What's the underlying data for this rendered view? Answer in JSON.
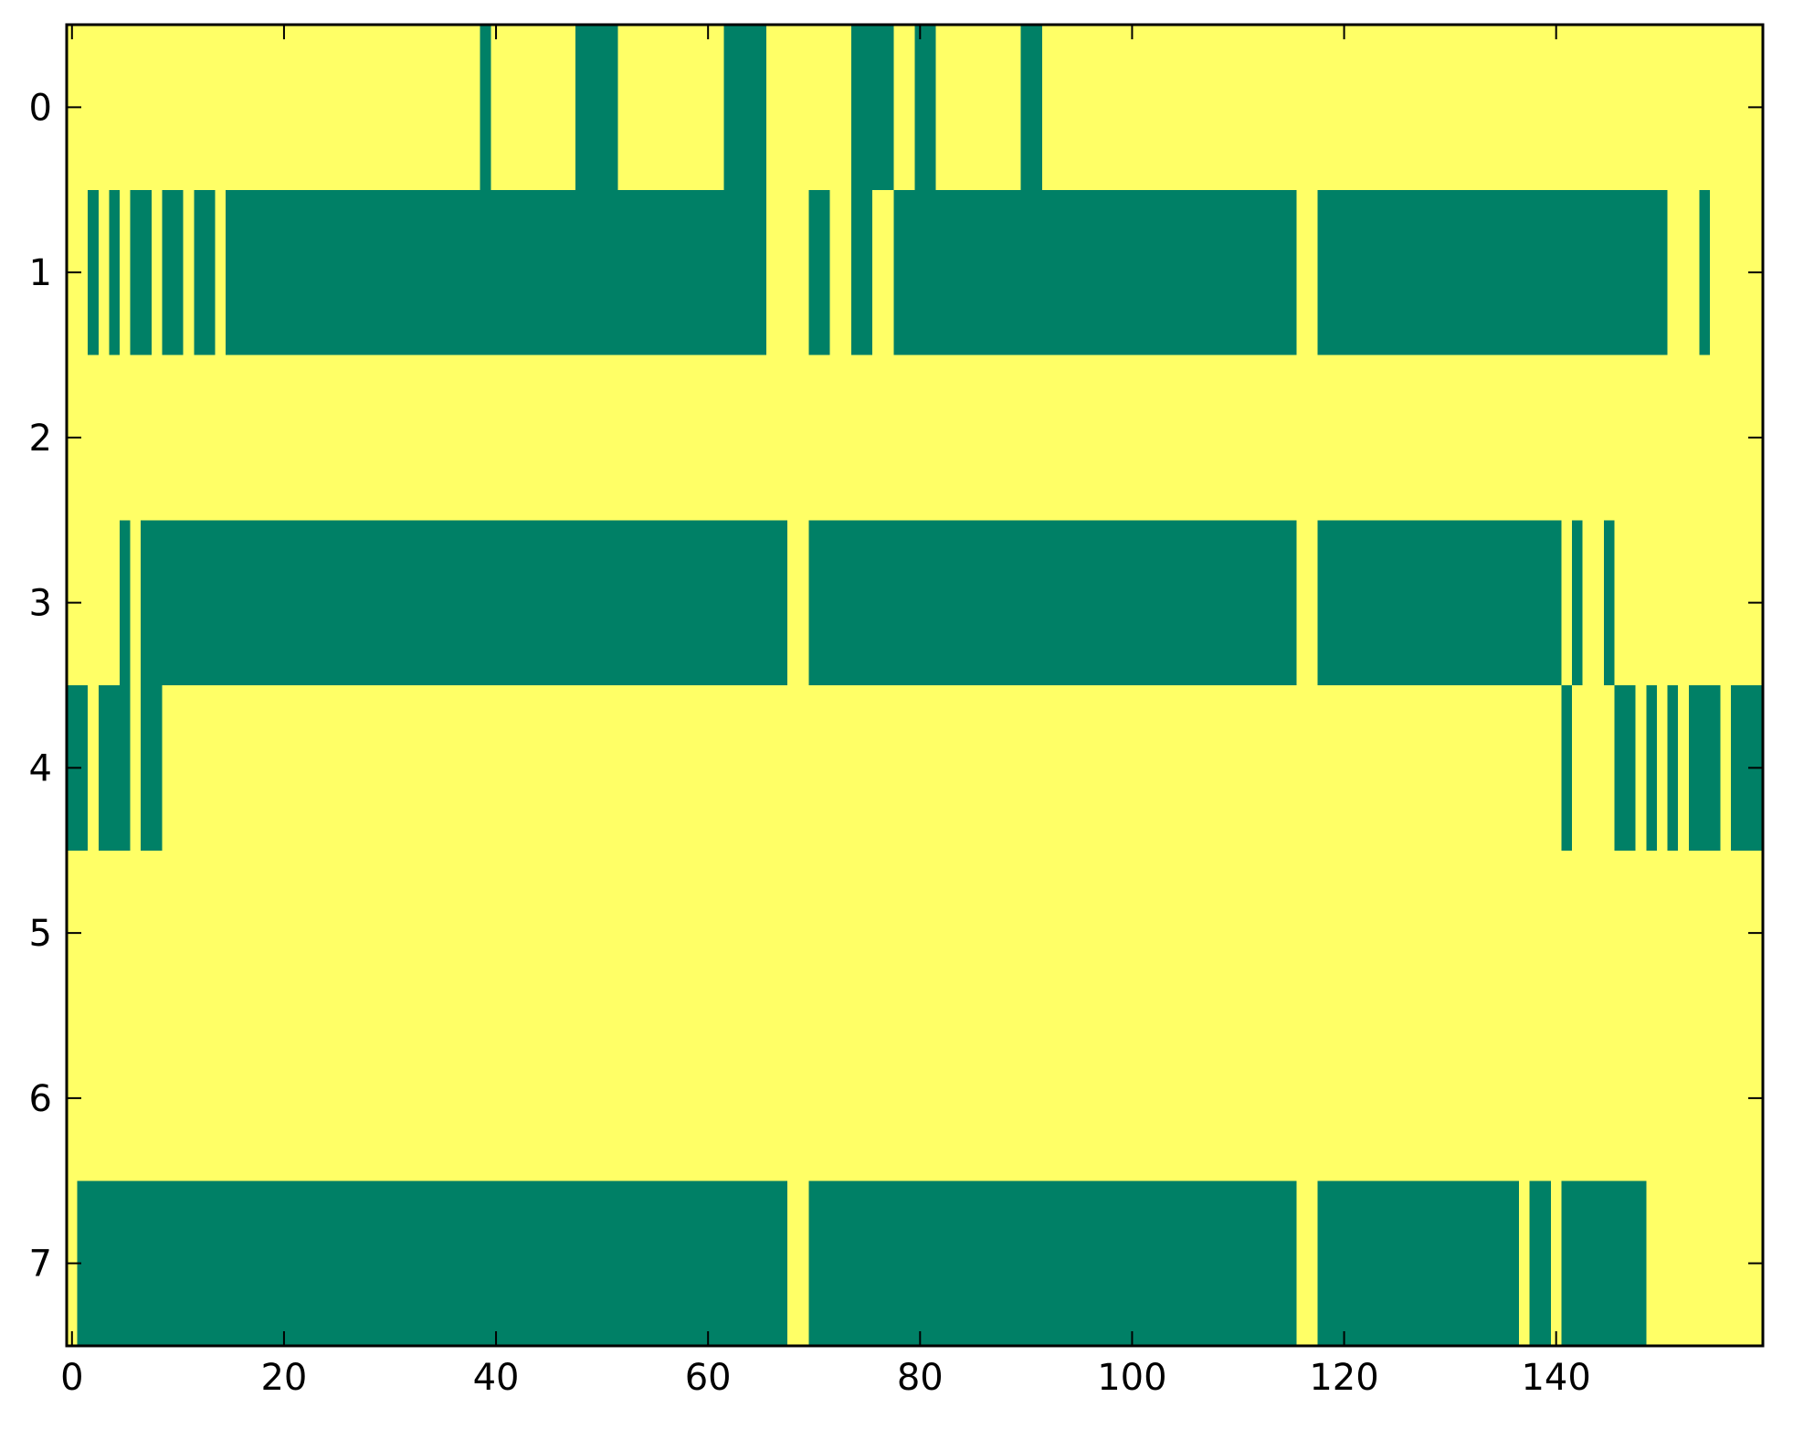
{
  "chart_data": {
    "type": "heatmap",
    "title": "",
    "xlabel": "",
    "ylabel": "",
    "xlim": [
      -0.5,
      159.5
    ],
    "ylim": [
      7.5,
      -0.5
    ],
    "n_columns": 160,
    "n_rows": 8,
    "x_ticks": [
      0,
      20,
      40,
      60,
      80,
      100,
      120,
      140
    ],
    "x_tick_labels": [
      "0",
      "20",
      "40",
      "60",
      "80",
      "100",
      "120",
      "140"
    ],
    "y_ticks": [
      0,
      1,
      2,
      3,
      4,
      5,
      6,
      7
    ],
    "y_tick_labels": [
      "0",
      "1",
      "2",
      "3",
      "4",
      "5",
      "6",
      "7"
    ],
    "grid": false,
    "legend": "none",
    "colors": {
      "low": "#ffff66",
      "high": "#008066"
    },
    "rows": [
      {
        "row": 0,
        "high_ranges": [
          [
            39,
            39
          ],
          [
            48,
            51
          ],
          [
            62,
            65
          ],
          [
            74,
            77
          ],
          [
            80,
            81
          ],
          [
            90,
            91
          ]
        ]
      },
      {
        "row": 1,
        "high_ranges": [
          [
            2,
            2
          ],
          [
            4,
            4
          ],
          [
            6,
            7
          ],
          [
            9,
            10
          ],
          [
            12,
            13
          ],
          [
            15,
            65
          ],
          [
            70,
            71
          ],
          [
            74,
            75
          ],
          [
            78,
            115
          ],
          [
            118,
            150
          ],
          [
            154,
            154
          ]
        ]
      },
      {
        "row": 2,
        "high_ranges": []
      },
      {
        "row": 3,
        "high_ranges": [
          [
            5,
            5
          ],
          [
            7,
            67
          ],
          [
            70,
            115
          ],
          [
            118,
            140
          ],
          [
            142,
            142
          ],
          [
            145,
            145
          ]
        ]
      },
      {
        "row": 4,
        "high_ranges": [
          [
            0,
            1
          ],
          [
            3,
            5
          ],
          [
            7,
            8
          ],
          [
            141,
            141
          ],
          [
            146,
            147
          ],
          [
            149,
            149
          ],
          [
            151,
            151
          ],
          [
            153,
            155
          ],
          [
            157,
            159
          ]
        ]
      },
      {
        "row": 5,
        "high_ranges": []
      },
      {
        "row": 6,
        "high_ranges": []
      },
      {
        "row": 7,
        "high_ranges": [
          [
            1,
            67
          ],
          [
            70,
            115
          ],
          [
            118,
            136
          ],
          [
            138,
            139
          ],
          [
            141,
            148
          ]
        ]
      }
    ]
  }
}
